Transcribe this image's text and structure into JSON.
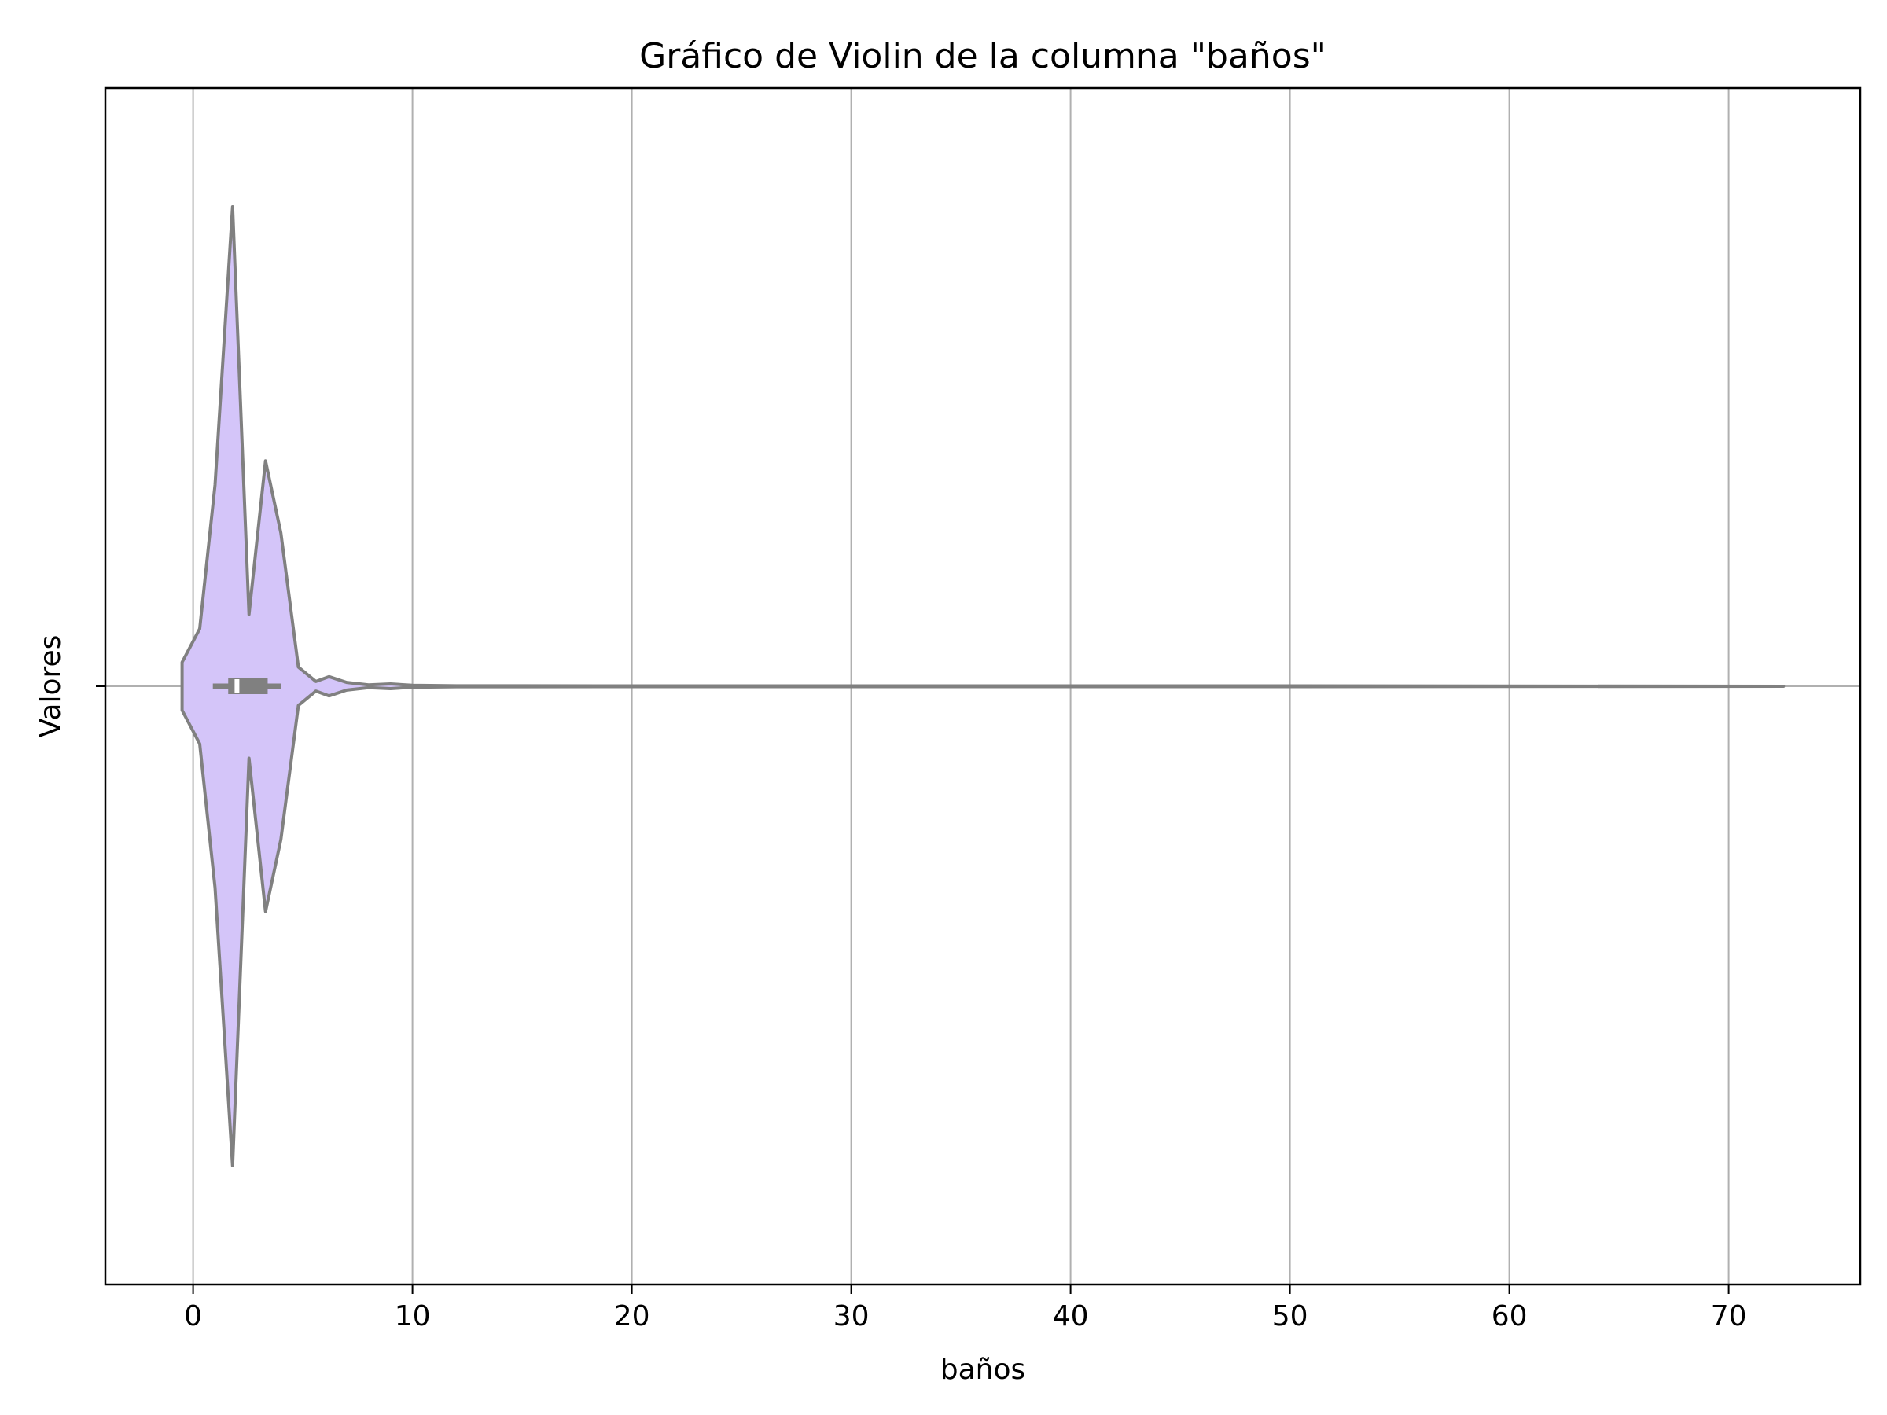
{
  "chart_data": {
    "type": "violin",
    "orientation": "horizontal",
    "title": "Gráfico de Violin de la columna \"baños\"",
    "xlabel": "baños",
    "ylabel": "Valores",
    "xlim": [
      -4,
      76
    ],
    "xticks": [
      0,
      10,
      20,
      30,
      40,
      50,
      60,
      70
    ],
    "xtick_labels": [
      "0",
      "10",
      "20",
      "30",
      "40",
      "50",
      "60",
      "70"
    ],
    "grid": true,
    "fill_color": "#d4c5f9",
    "line_color": "#808080",
    "grid_color": "#b0b0b0",
    "density": {
      "x": [
        -0.5,
        0.3,
        1.0,
        1.8,
        2.55,
        3.3,
        4.0,
        4.8,
        5.6,
        6.2,
        7.0,
        8.0,
        9.0,
        10.0,
        12.0,
        15.0,
        20.0,
        30.0,
        50.0,
        72.5
      ],
      "half_width_fraction": [
        0.05,
        0.12,
        0.42,
        1.0,
        0.15,
        0.47,
        0.32,
        0.04,
        0.01,
        0.02,
        0.008,
        0.003,
        0.005,
        0.002,
        0.001,
        0.001,
        0.0008,
        0.0008,
        0.0008,
        0.0
      ]
    },
    "box": {
      "whisker_low": 0.9,
      "q1": 1.6,
      "median": 2.0,
      "q3": 3.4,
      "whisker_high": 4.0
    }
  }
}
